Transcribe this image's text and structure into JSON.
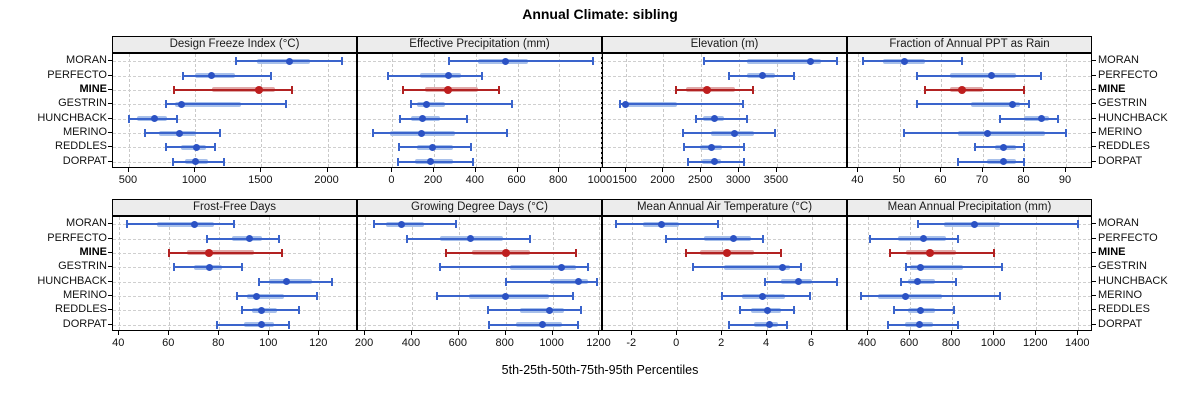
{
  "title": "Annual Climate: sibling",
  "caption": "5th-25th-50th-75th-95th Percentiles",
  "sites": [
    "MORAN",
    "PERFECTO",
    "MINE",
    "GESTRIN",
    "HUNCHBACK",
    "MERINO",
    "REDDLES",
    "DORPAT"
  ],
  "highlight_site": "MINE",
  "percentile_labels": [
    "5th",
    "25th",
    "50th",
    "75th",
    "95th"
  ],
  "colors": {
    "series_line": "#3A64CC",
    "series_band": "#A8C0EA",
    "series_dot": "#2B52C4",
    "highlight_line": "#B22222",
    "highlight_band": "#E0A8A8",
    "highlight_dot": "#BE1E1E",
    "grid": "#cccccc",
    "strip_bg": "#ececec",
    "panel_border": "#000000"
  },
  "chart_data": [
    {
      "type": "scatter",
      "subtype": "percentile-interval-dotplot",
      "title": "Design Freeze Index (°C)",
      "row": 0,
      "col": 0,
      "xlim": [
        380,
        2230
      ],
      "xticks": [
        500,
        1000,
        1500,
        2000
      ],
      "percentiles": [
        "5th",
        "25th",
        "50th",
        "75th",
        "95th"
      ],
      "series": [
        {
          "name": "MORAN",
          "values": [
            1310,
            1470,
            1715,
            1870,
            2110
          ]
        },
        {
          "name": "PERFECTO",
          "values": [
            910,
            1000,
            1120,
            1300,
            1570
          ]
        },
        {
          "name": "MINE",
          "values": [
            840,
            1130,
            1480,
            1600,
            1730
          ]
        },
        {
          "name": "GESTRIN",
          "values": [
            780,
            850,
            900,
            1350,
            1690
          ]
        },
        {
          "name": "HUNCHBACK",
          "values": [
            500,
            560,
            690,
            790,
            860
          ]
        },
        {
          "name": "MERINO",
          "values": [
            620,
            730,
            880,
            1010,
            1190
          ]
        },
        {
          "name": "REDDLES",
          "values": [
            780,
            890,
            1010,
            1080,
            1150
          ]
        },
        {
          "name": "DORPAT",
          "values": [
            830,
            920,
            1000,
            1100,
            1220
          ]
        }
      ]
    },
    {
      "type": "scatter",
      "subtype": "percentile-interval-dotplot",
      "title": "Effective Precipitation (mm)",
      "row": 0,
      "col": 1,
      "xlim": [
        -165,
        1010
      ],
      "xticks": [
        0,
        200,
        400,
        600,
        800,
        1000
      ],
      "percentiles": [
        "5th",
        "25th",
        "50th",
        "75th",
        "95th"
      ],
      "series": [
        {
          "name": "MORAN",
          "values": [
            270,
            410,
            540,
            650,
            960
          ]
        },
        {
          "name": "PERFECTO",
          "values": [
            -20,
            130,
            270,
            330,
            430
          ]
        },
        {
          "name": "MINE",
          "values": [
            50,
            155,
            265,
            410,
            510
          ]
        },
        {
          "name": "GESTRIN",
          "values": [
            90,
            120,
            165,
            250,
            575
          ]
        },
        {
          "name": "HUNCHBACK",
          "values": [
            35,
            90,
            145,
            230,
            360
          ]
        },
        {
          "name": "MERINO",
          "values": [
            -95,
            -10,
            140,
            300,
            550
          ]
        },
        {
          "name": "REDDLES",
          "values": [
            30,
            120,
            190,
            290,
            375
          ]
        },
        {
          "name": "DORPAT",
          "values": [
            25,
            110,
            185,
            290,
            385
          ]
        }
      ]
    },
    {
      "type": "scatter",
      "subtype": "percentile-interval-dotplot",
      "title": "Elevation (m)",
      "row": 0,
      "col": 2,
      "xlim": [
        1200,
        4440
      ],
      "xticks": [
        1500,
        2000,
        2500,
        3000,
        3500
      ],
      "percentiles": [
        "5th",
        "25th",
        "50th",
        "75th",
        "95th"
      ],
      "series": [
        {
          "name": "MORAN",
          "values": [
            2540,
            3100,
            3950,
            4080,
            4290
          ]
        },
        {
          "name": "PERFECTO",
          "values": [
            2870,
            3100,
            3310,
            3480,
            3720
          ]
        },
        {
          "name": "MINE",
          "values": [
            2160,
            2300,
            2580,
            2940,
            3180
          ]
        },
        {
          "name": "GESTRIN",
          "values": [
            1430,
            1480,
            1500,
            2180,
            3050
          ]
        },
        {
          "name": "HUNCHBACK",
          "values": [
            2430,
            2520,
            2680,
            2800,
            3110
          ]
        },
        {
          "name": "MERINO",
          "values": [
            2260,
            2630,
            2940,
            3200,
            3470
          ]
        },
        {
          "name": "REDDLES",
          "values": [
            2270,
            2480,
            2630,
            2780,
            3070
          ]
        },
        {
          "name": "DORPAT",
          "values": [
            2320,
            2510,
            2670,
            2760,
            3060
          ]
        }
      ]
    },
    {
      "type": "scatter",
      "subtype": "percentile-interval-dotplot",
      "title": "Fraction of Annual PPT as Rain",
      "row": 0,
      "col": 3,
      "xlim": [
        37.5,
        96.5
      ],
      "xticks": [
        40,
        50,
        60,
        70,
        80,
        90
      ],
      "percentiles": [
        "5th",
        "25th",
        "50th",
        "75th",
        "95th"
      ],
      "series": [
        {
          "name": "MORAN",
          "values": [
            41,
            46,
            51,
            56,
            65
          ]
        },
        {
          "name": "PERFECTO",
          "values": [
            54,
            62,
            72,
            78,
            84
          ]
        },
        {
          "name": "MINE",
          "values": [
            56,
            62,
            65,
            70,
            80
          ]
        },
        {
          "name": "GESTRIN",
          "values": [
            54,
            67,
            77,
            79,
            81
          ]
        },
        {
          "name": "HUNCHBACK",
          "values": [
            74,
            80,
            84,
            86,
            88
          ]
        },
        {
          "name": "MERINO",
          "values": [
            51,
            64,
            71,
            85,
            90
          ]
        },
        {
          "name": "REDDLES",
          "values": [
            68,
            73,
            75,
            78,
            80
          ]
        },
        {
          "name": "DORPAT",
          "values": [
            64,
            71,
            75,
            78,
            80
          ]
        }
      ]
    },
    {
      "type": "scatter",
      "subtype": "percentile-interval-dotplot",
      "title": "Frost-Free Days",
      "row": 1,
      "col": 0,
      "xlim": [
        37.5,
        135.5
      ],
      "xticks": [
        40,
        60,
        80,
        100,
        120
      ],
      "percentiles": [
        "5th",
        "25th",
        "50th",
        "75th",
        "95th"
      ],
      "series": [
        {
          "name": "MORAN",
          "values": [
            43,
            55,
            70,
            78,
            86
          ]
        },
        {
          "name": "PERFECTO",
          "values": [
            75,
            85,
            92,
            97,
            104
          ]
        },
        {
          "name": "MINE",
          "values": [
            60,
            67,
            76,
            94,
            105
          ]
        },
        {
          "name": "GESTRIN",
          "values": [
            62,
            70,
            76,
            81,
            89
          ]
        },
        {
          "name": "HUNCHBACK",
          "values": [
            96,
            100,
            107,
            117,
            125
          ]
        },
        {
          "name": "MERINO",
          "values": [
            87,
            91,
            95,
            106,
            119
          ]
        },
        {
          "name": "REDDLES",
          "values": [
            89,
            93,
            97,
            103,
            112
          ]
        },
        {
          "name": "DORPAT",
          "values": [
            79,
            90,
            97,
            102,
            108
          ]
        }
      ]
    },
    {
      "type": "scatter",
      "subtype": "percentile-interval-dotplot",
      "title": "Growing Degree Days (°C)",
      "row": 1,
      "col": 1,
      "xlim": [
        170,
        1215
      ],
      "xticks": [
        200,
        400,
        600,
        800,
        1000,
        1200
      ],
      "percentiles": [
        "5th",
        "25th",
        "50th",
        "75th",
        "95th"
      ],
      "series": [
        {
          "name": "MORAN",
          "values": [
            240,
            290,
            355,
            450,
            590
          ]
        },
        {
          "name": "PERFECTO",
          "values": [
            380,
            520,
            650,
            790,
            905
          ]
        },
        {
          "name": "MINE",
          "values": [
            545,
            655,
            800,
            905,
            1100
          ]
        },
        {
          "name": "GESTRIN",
          "values": [
            520,
            820,
            1040,
            1100,
            1150
          ]
        },
        {
          "name": "HUNCHBACK",
          "values": [
            800,
            990,
            1110,
            1150,
            1190
          ]
        },
        {
          "name": "MERINO",
          "values": [
            505,
            645,
            800,
            985,
            1085
          ]
        },
        {
          "name": "REDDLES",
          "values": [
            725,
            860,
            985,
            1050,
            1120
          ]
        },
        {
          "name": "DORPAT",
          "values": [
            730,
            845,
            955,
            1040,
            1110
          ]
        }
      ]
    },
    {
      "type": "scatter",
      "subtype": "percentile-interval-dotplot",
      "title": "Mean Annual Air Temperature (°C)",
      "row": 1,
      "col": 2,
      "xlim": [
        -3.3,
        7.6
      ],
      "xticks": [
        -2,
        0,
        2,
        4,
        6
      ],
      "percentiles": [
        "5th",
        "25th",
        "50th",
        "75th",
        "95th"
      ],
      "series": [
        {
          "name": "MORAN",
          "values": [
            -2.7,
            -1.5,
            -0.7,
            0.1,
            1.8
          ]
        },
        {
          "name": "PERFECTO",
          "values": [
            -0.5,
            1.2,
            2.5,
            3.3,
            3.8
          ]
        },
        {
          "name": "MINE",
          "values": [
            0.4,
            1.0,
            2.2,
            3.4,
            4.6
          ]
        },
        {
          "name": "GESTRIN",
          "values": [
            0.7,
            2.1,
            4.7,
            5.0,
            5.5
          ]
        },
        {
          "name": "HUNCHBACK",
          "values": [
            3.9,
            4.6,
            5.4,
            6.0,
            7.1
          ]
        },
        {
          "name": "MERINO",
          "values": [
            2.0,
            2.9,
            3.8,
            4.8,
            5.9
          ]
        },
        {
          "name": "REDDLES",
          "values": [
            2.8,
            3.3,
            4.0,
            4.6,
            5.2
          ]
        },
        {
          "name": "DORPAT",
          "values": [
            2.3,
            3.4,
            4.1,
            4.5,
            4.9
          ]
        }
      ]
    },
    {
      "type": "scatter",
      "subtype": "percentile-interval-dotplot",
      "title": "Mean Annual Precipitation (mm)",
      "row": 1,
      "col": 3,
      "xlim": [
        305,
        1470
      ],
      "xticks": [
        400,
        600,
        800,
        1000,
        1200,
        1400
      ],
      "percentiles": [
        "5th",
        "25th",
        "50th",
        "75th",
        "95th"
      ],
      "series": [
        {
          "name": "MORAN",
          "values": [
            640,
            760,
            905,
            1030,
            1400
          ]
        },
        {
          "name": "PERFECTO",
          "values": [
            410,
            545,
            665,
            770,
            830
          ]
        },
        {
          "name": "MINE",
          "values": [
            505,
            580,
            695,
            820,
            1000
          ]
        },
        {
          "name": "GESTRIN",
          "values": [
            580,
            600,
            650,
            850,
            1035
          ]
        },
        {
          "name": "HUNCHBACK",
          "values": [
            555,
            590,
            635,
            720,
            820
          ]
        },
        {
          "name": "MERINO",
          "values": [
            365,
            450,
            580,
            750,
            1030
          ]
        },
        {
          "name": "REDDLES",
          "values": [
            525,
            590,
            650,
            720,
            810
          ]
        },
        {
          "name": "DORPAT",
          "values": [
            495,
            575,
            645,
            710,
            830
          ]
        }
      ]
    }
  ]
}
